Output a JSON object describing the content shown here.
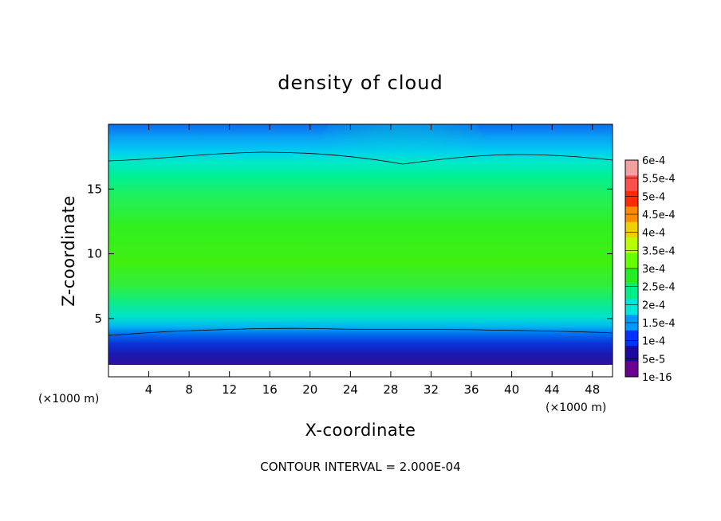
{
  "chart_data": {
    "type": "heatmap",
    "title": "density of cloud",
    "xlabel": "X-coordinate",
    "ylabel": "Z-coordinate",
    "x_unit": "(×1000 m)",
    "x_unit_right": "(×1000 m)",
    "xlim": [
      0,
      50
    ],
    "ylim": [
      0.5,
      20
    ],
    "x_ticks": [
      4,
      8,
      12,
      16,
      20,
      24,
      28,
      32,
      36,
      40,
      44,
      48
    ],
    "y_ticks": [
      5,
      10,
      15
    ],
    "colorbar": {
      "labels": [
        "6e-4",
        "5.5e-4",
        "5e-4",
        "4.5e-4",
        "4e-4",
        "3.5e-4",
        "3e-4",
        "2.5e-4",
        "2e-4",
        "1.5e-4",
        "1e-4",
        "5e-5",
        "1e-16"
      ],
      "colors": [
        "#f5a0a0",
        "#ff5050",
        "#ff2a00",
        "#ff8c00",
        "#f0d000",
        "#b8ff00",
        "#66ff00",
        "#22ee22",
        "#00ee88",
        "#00e8d8",
        "#0099ff",
        "#0033ff",
        "#1a0aa0",
        "#6a0090"
      ]
    },
    "note": "CONTOUR INTERVAL = 2.000E-04"
  }
}
